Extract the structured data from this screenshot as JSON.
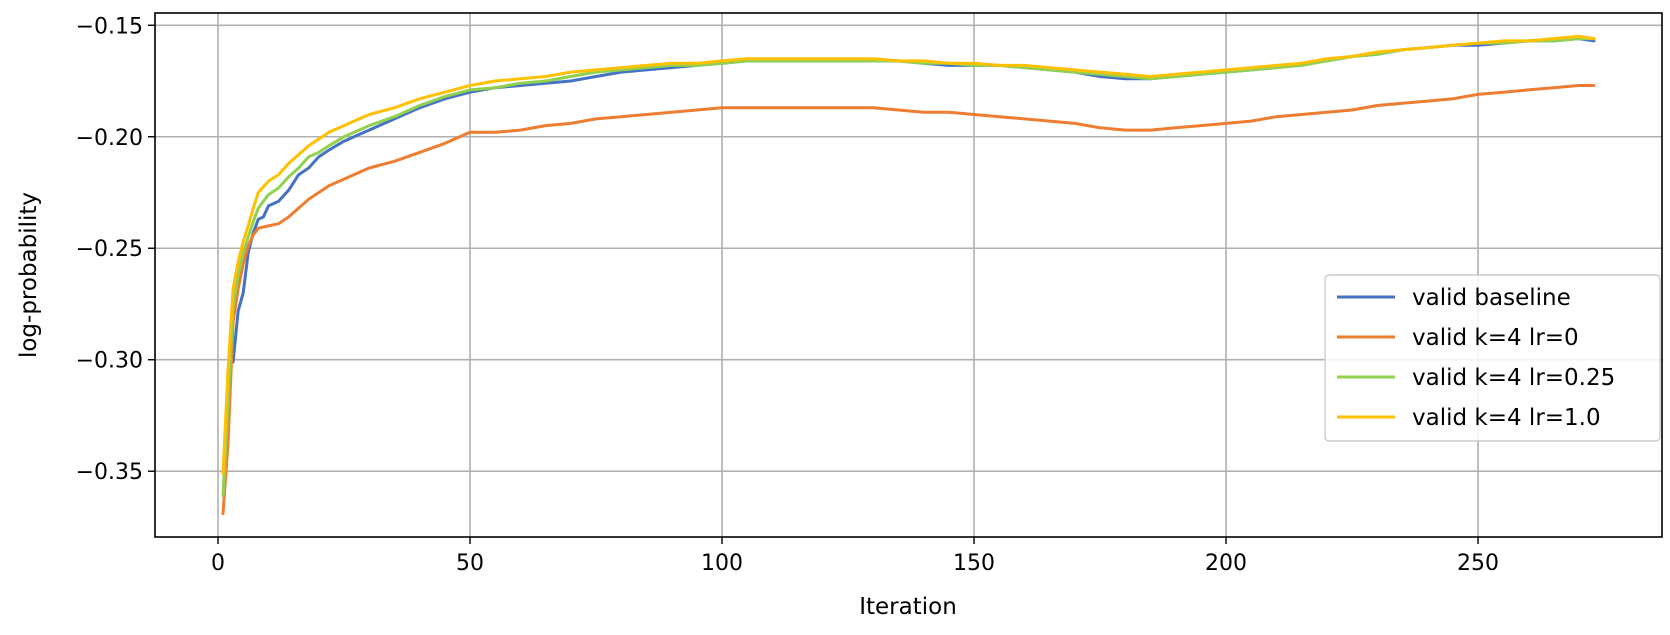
{
  "chart_data": {
    "type": "line",
    "title": "",
    "xlabel": "Iteration",
    "ylabel": "log-probability",
    "xlim": [
      -12.5,
      286.5
    ],
    "ylim": [
      -0.3795,
      -0.1445
    ],
    "xticks": [
      0,
      50,
      100,
      150,
      200,
      250
    ],
    "xtick_labels": [
      "0",
      "50",
      "100",
      "150",
      "200",
      "250"
    ],
    "yticks": [
      -0.35,
      -0.3,
      -0.25,
      -0.2,
      -0.15
    ],
    "ytick_labels": [
      "−0.35",
      "−0.30",
      "−0.25",
      "−0.20",
      "−0.15"
    ],
    "grid": true,
    "legend_position": "center-right",
    "series": [
      {
        "name": "valid baseline",
        "color": "#4472c4",
        "x": [
          3,
          4,
          5,
          6,
          7,
          8,
          9,
          10,
          12,
          14,
          16,
          18,
          20,
          22,
          25,
          28,
          30,
          35,
          40,
          45,
          50,
          55,
          60,
          65,
          70,
          75,
          80,
          85,
          90,
          95,
          100,
          105,
          110,
          115,
          120,
          125,
          130,
          135,
          140,
          145,
          150,
          155,
          160,
          165,
          170,
          175,
          180,
          185,
          190,
          195,
          200,
          205,
          210,
          215,
          220,
          225,
          230,
          235,
          240,
          245,
          250,
          255,
          260,
          265,
          270,
          273
        ],
        "y": [
          -0.301,
          -0.278,
          -0.27,
          -0.252,
          -0.243,
          -0.237,
          -0.236,
          -0.231,
          -0.229,
          -0.224,
          -0.217,
          -0.214,
          -0.209,
          -0.206,
          -0.202,
          -0.199,
          -0.197,
          -0.192,
          -0.187,
          -0.183,
          -0.18,
          -0.178,
          -0.177,
          -0.176,
          -0.175,
          -0.173,
          -0.171,
          -0.17,
          -0.169,
          -0.168,
          -0.167,
          -0.166,
          -0.166,
          -0.166,
          -0.166,
          -0.166,
          -0.166,
          -0.166,
          -0.167,
          -0.168,
          -0.168,
          -0.168,
          -0.169,
          -0.17,
          -0.171,
          -0.173,
          -0.174,
          -0.174,
          -0.173,
          -0.172,
          -0.171,
          -0.17,
          -0.169,
          -0.167,
          -0.166,
          -0.164,
          -0.163,
          -0.161,
          -0.16,
          -0.159,
          -0.159,
          -0.158,
          -0.157,
          -0.157,
          -0.156,
          -0.157
        ]
      },
      {
        "name": "valid k=4 lr=0",
        "color": "#ed7d31",
        "x": [
          1,
          2,
          3,
          4,
          5,
          6,
          7,
          8,
          10,
          12,
          14,
          16,
          18,
          20,
          22,
          25,
          28,
          30,
          35,
          40,
          45,
          50,
          55,
          60,
          65,
          70,
          75,
          80,
          85,
          90,
          95,
          100,
          105,
          110,
          115,
          120,
          125,
          130,
          135,
          140,
          145,
          150,
          155,
          160,
          165,
          170,
          175,
          180,
          185,
          190,
          195,
          200,
          205,
          210,
          215,
          220,
          225,
          230,
          235,
          240,
          245,
          250,
          255,
          260,
          265,
          270,
          273
        ],
        "y": [
          -0.369,
          -0.337,
          -0.283,
          -0.268,
          -0.257,
          -0.249,
          -0.244,
          -0.241,
          -0.24,
          -0.239,
          -0.236,
          -0.232,
          -0.228,
          -0.225,
          -0.222,
          -0.219,
          -0.216,
          -0.214,
          -0.211,
          -0.207,
          -0.203,
          -0.198,
          -0.198,
          -0.197,
          -0.195,
          -0.194,
          -0.192,
          -0.191,
          -0.19,
          -0.189,
          -0.188,
          -0.187,
          -0.187,
          -0.187,
          -0.187,
          -0.187,
          -0.187,
          -0.187,
          -0.188,
          -0.189,
          -0.189,
          -0.19,
          -0.191,
          -0.192,
          -0.193,
          -0.194,
          -0.196,
          -0.197,
          -0.197,
          -0.196,
          -0.195,
          -0.194,
          -0.193,
          -0.191,
          -0.19,
          -0.189,
          -0.188,
          -0.186,
          -0.185,
          -0.184,
          -0.183,
          -0.181,
          -0.18,
          -0.179,
          -0.178,
          -0.177,
          -0.177
        ]
      },
      {
        "name": "valid k=4 lr=0.25",
        "color": "#92d050",
        "x": [
          1,
          2,
          3,
          4,
          5,
          6,
          7,
          8,
          10,
          12,
          14,
          16,
          18,
          20,
          22,
          25,
          28,
          30,
          35,
          40,
          45,
          50,
          55,
          60,
          65,
          70,
          75,
          80,
          85,
          90,
          95,
          100,
          105,
          110,
          115,
          120,
          125,
          130,
          135,
          140,
          145,
          150,
          155,
          160,
          165,
          170,
          175,
          180,
          185,
          190,
          195,
          200,
          205,
          210,
          215,
          220,
          225,
          230,
          235,
          240,
          245,
          250,
          255,
          260,
          265,
          270,
          273
        ],
        "y": [
          -0.361,
          -0.32,
          -0.276,
          -0.262,
          -0.252,
          -0.245,
          -0.238,
          -0.232,
          -0.226,
          -0.223,
          -0.218,
          -0.214,
          -0.209,
          -0.207,
          -0.204,
          -0.2,
          -0.197,
          -0.195,
          -0.191,
          -0.186,
          -0.182,
          -0.179,
          -0.178,
          -0.176,
          -0.175,
          -0.173,
          -0.171,
          -0.17,
          -0.169,
          -0.168,
          -0.168,
          -0.167,
          -0.166,
          -0.166,
          -0.166,
          -0.166,
          -0.166,
          -0.166,
          -0.166,
          -0.167,
          -0.167,
          -0.168,
          -0.168,
          -0.169,
          -0.17,
          -0.171,
          -0.172,
          -0.173,
          -0.174,
          -0.173,
          -0.172,
          -0.171,
          -0.17,
          -0.169,
          -0.168,
          -0.166,
          -0.164,
          -0.163,
          -0.161,
          -0.16,
          -0.159,
          -0.158,
          -0.158,
          -0.157,
          -0.157,
          -0.156,
          -0.156
        ]
      },
      {
        "name": "valid k=4 lr=1.0",
        "color": "#ffc000",
        "x": [
          1,
          2,
          3,
          4,
          5,
          6,
          7,
          8,
          10,
          12,
          14,
          16,
          18,
          20,
          22,
          25,
          28,
          30,
          35,
          40,
          45,
          50,
          55,
          60,
          65,
          70,
          75,
          80,
          85,
          90,
          95,
          100,
          105,
          110,
          115,
          120,
          125,
          130,
          135,
          140,
          145,
          150,
          155,
          160,
          165,
          170,
          175,
          180,
          185,
          190,
          195,
          200,
          205,
          210,
          215,
          220,
          225,
          230,
          235,
          240,
          245,
          250,
          255,
          260,
          265,
          270,
          273
        ],
        "y": [
          -0.351,
          -0.304,
          -0.268,
          -0.256,
          -0.247,
          -0.24,
          -0.232,
          -0.225,
          -0.22,
          -0.217,
          -0.212,
          -0.208,
          -0.204,
          -0.201,
          -0.198,
          -0.195,
          -0.192,
          -0.19,
          -0.187,
          -0.183,
          -0.18,
          -0.177,
          -0.175,
          -0.174,
          -0.173,
          -0.171,
          -0.17,
          -0.169,
          -0.168,
          -0.167,
          -0.167,
          -0.166,
          -0.165,
          -0.165,
          -0.165,
          -0.165,
          -0.165,
          -0.165,
          -0.166,
          -0.166,
          -0.167,
          -0.167,
          -0.168,
          -0.168,
          -0.169,
          -0.17,
          -0.171,
          -0.172,
          -0.173,
          -0.172,
          -0.171,
          -0.17,
          -0.169,
          -0.168,
          -0.167,
          -0.165,
          -0.164,
          -0.162,
          -0.161,
          -0.16,
          -0.159,
          -0.158,
          -0.157,
          -0.157,
          -0.156,
          -0.155,
          -0.156
        ]
      }
    ]
  }
}
